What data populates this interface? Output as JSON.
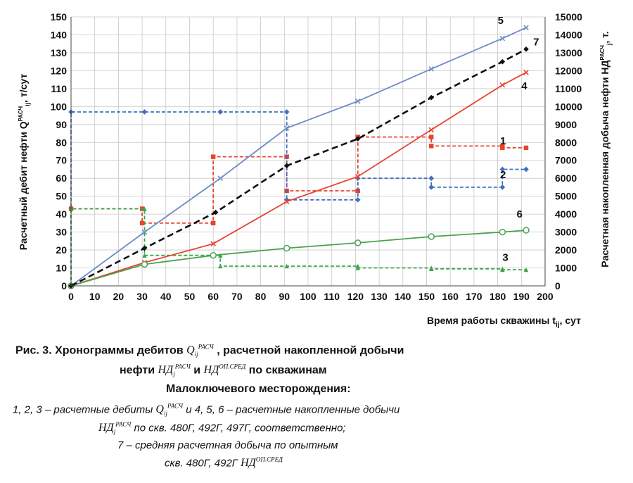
{
  "chart_data": {
    "type": "line",
    "xlabel": "Время работы скважины t",
    "xlabel_sub": "ij",
    "xlabel_unit": ", сут",
    "ylabel_left": "Расчетный дебит нефти Q",
    "ylabel_left_sup": "РАСЧ",
    "ylabel_left_sub": "ij",
    "ylabel_left_unit": ", т/сут",
    "ylabel_right": "Расчетная накопленная добыча нефти НД",
    "ylabel_right_sup": "РАСЧ",
    "ylabel_right_sub": "j",
    "ylabel_right_unit": ", т.",
    "xlim": [
      0,
      200
    ],
    "ylim_left": [
      0,
      150
    ],
    "ylim_right": [
      0,
      15000
    ],
    "x_ticks": [
      "0",
      "10",
      "20",
      "30",
      "40",
      "50",
      "60",
      "70",
      "80",
      "90",
      "100",
      "110",
      "120",
      "130",
      "140",
      "150",
      "160",
      "170",
      "180",
      "190",
      "200"
    ],
    "y_left_ticks": [
      "0",
      "10",
      "20",
      "30",
      "40",
      "50",
      "60",
      "70",
      "80",
      "90",
      "100",
      "110",
      "120",
      "130",
      "140",
      "150"
    ],
    "y_right_ticks": [
      "0",
      "1000",
      "2000",
      "3000",
      "4000",
      "5000",
      "6000",
      "7000",
      "8000",
      "9000",
      "10000",
      "11000",
      "12000",
      "13000",
      "14000",
      "15000"
    ],
    "grid": true,
    "series": [
      {
        "name": "1",
        "axis": "left",
        "style": "dashed-step",
        "color": "#e8432e",
        "marker": "square",
        "x": [
          0,
          0,
          30,
          30,
          60,
          60,
          91,
          91,
          121,
          121,
          152,
          152,
          182,
          182,
          192
        ],
        "y": [
          0,
          43,
          43,
          35,
          35,
          72,
          72,
          53,
          53,
          83,
          83,
          78,
          78,
          77,
          77
        ]
      },
      {
        "name": "2",
        "axis": "left",
        "style": "dashed-step",
        "color": "#3d6fc2",
        "marker": "diamond",
        "x": [
          0,
          0,
          31,
          31,
          63,
          63,
          91,
          91,
          121,
          121,
          152,
          152,
          182,
          182,
          192
        ],
        "y": [
          0,
          97,
          97,
          97,
          97,
          97,
          97,
          48,
          48,
          60,
          60,
          55,
          55,
          65,
          65
        ]
      },
      {
        "name": "3",
        "axis": "left",
        "style": "dashed-step",
        "color": "#3aa64a",
        "marker": "triangle",
        "x": [
          0,
          0,
          31,
          31,
          63,
          63,
          91,
          91,
          121,
          121,
          152,
          152,
          182,
          182,
          192
        ],
        "y": [
          0,
          43,
          43,
          17,
          17,
          11,
          11,
          11,
          11,
          10,
          10,
          9.5,
          9.5,
          9,
          9
        ]
      },
      {
        "name": "4",
        "axis": "right",
        "style": "solid",
        "color": "#e8432e",
        "marker": "x",
        "x": [
          0,
          31,
          60,
          91,
          121,
          152,
          182,
          192
        ],
        "y": [
          0,
          1300,
          2350,
          4700,
          6100,
          8700,
          11200,
          11900
        ]
      },
      {
        "name": "5",
        "axis": "right",
        "style": "solid",
        "color": "#6d8bc7",
        "marker": "x",
        "x": [
          0,
          31,
          63,
          91,
          121,
          152,
          182,
          192
        ],
        "y": [
          0,
          3000,
          6000,
          8800,
          10300,
          12100,
          13800,
          14400
        ]
      },
      {
        "name": "6",
        "axis": "right",
        "style": "solid",
        "color": "#4aa24e",
        "marker": "circle",
        "x": [
          0,
          31,
          60,
          91,
          121,
          152,
          182,
          192
        ],
        "y": [
          0,
          1200,
          1700,
          2100,
          2400,
          2750,
          3000,
          3100
        ]
      },
      {
        "name": "7",
        "axis": "right",
        "style": "dashed",
        "color": "#111111",
        "marker": "diamond",
        "x": [
          0,
          31,
          61,
          91,
          121,
          152,
          182,
          192
        ],
        "y": [
          0,
          2100,
          4100,
          6700,
          8200,
          10500,
          12500,
          13200
        ]
      }
    ]
  },
  "caption": {
    "line1_a": "Рис. 3. Хронограммы дебитов ",
    "line1_sym": "Q",
    "line1_sub": "ij",
    "line1_sup": "РАСЧ",
    "line1_b": " , расчетной накопленной добычи",
    "line2_a": "нефти ",
    "line2_sym1": "НД",
    "line2_sub1": "j",
    "line2_sup1": "РАСЧ",
    "line2_b": " и ",
    "line2_sym2": "НД",
    "line2_sup2": "ОП.СРЕД",
    "line2_c": " по скважинам",
    "line3": "Малоключевого месторождения:",
    "line4_a": "1, 2, 3 – расчетные дебиты ",
    "line4_sym": "Q",
    "line4_sub": "ij",
    "line4_sup": "РАСЧ",
    "line4_b": " и 4, 5, 6 – расчетные накопленные добычи",
    "line5_sym": "НД",
    "line5_sub": "j",
    "line5_sup": "РАСЧ",
    "line5_b": " по скв. 480Г, 492Г, 497Г, соответственно;",
    "line6": "7 – средняя расчетная добыча по опытным",
    "line7_a": "скв. 480Г, 492Г ",
    "line7_sym": "НД",
    "line7_sup": "ОП.СРЕД"
  }
}
